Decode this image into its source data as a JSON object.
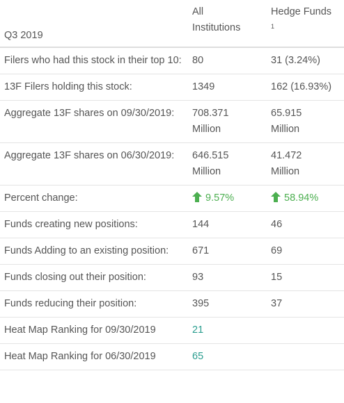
{
  "header": {
    "period": "Q3 2019",
    "col_all": "All Institutions",
    "col_all_line1": "All",
    "col_all_line2": "Institutions",
    "col_hedge": "Hedge Funds",
    "col_hedge_note": "1"
  },
  "rows": [
    {
      "label": "Filers who had this stock in their top 10:",
      "all": "80",
      "hedge": "31 (3.24%)"
    },
    {
      "label": "13F Filers holding this stock:",
      "all": "1349",
      "hedge": "162 (16.93%)"
    },
    {
      "label": "Aggregate 13F shares on 09/30/2019:",
      "all_line1": "708.371",
      "all_line2": "Million",
      "hedge_line1": "65.915",
      "hedge_line2": "Million"
    },
    {
      "label": "Aggregate 13F shares on 06/30/2019:",
      "all_line1": "646.515",
      "all_line2": "Million",
      "hedge_line1": "41.472",
      "hedge_line2": "Million"
    },
    {
      "label": "Percent change:",
      "all": "9.57%",
      "hedge": "58.94%",
      "direction": "up",
      "up_color": "#4caf50"
    },
    {
      "label": "Funds creating new positions:",
      "all": "144",
      "hedge": "46"
    },
    {
      "label": "Funds Adding to an existing position:",
      "all": "671",
      "hedge": "69"
    },
    {
      "label": "Funds closing out their position:",
      "all": "93",
      "hedge": "15"
    },
    {
      "label": "Funds reducing their position:",
      "all": "395",
      "hedge": "37"
    },
    {
      "label": "Heat Map Ranking for 09/30/2019",
      "all": "21",
      "link_color": "#2a9d8f"
    },
    {
      "label": "Heat Map Ranking for 06/30/2019",
      "all": "65",
      "link_color": "#2a9d8f"
    }
  ],
  "icons": {
    "up_arrow": "up-arrow-icon"
  }
}
